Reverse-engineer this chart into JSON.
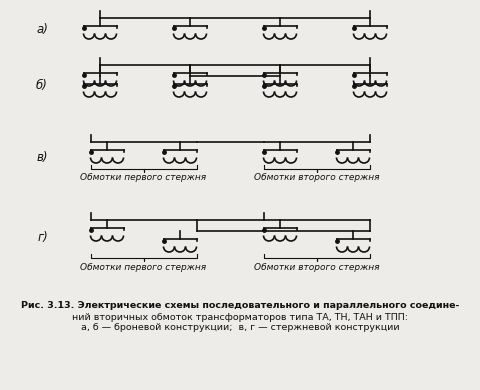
{
  "background_color": "#eeece8",
  "line_color": "#111111",
  "line_width": 1.2,
  "label_a": "а)",
  "label_b": "б)",
  "label_v": "в)",
  "label_g": "г)",
  "text_first_stem": "Обмотки первого стержня",
  "text_second_stem": "Обмотки второго стержня",
  "caption_line1": "Рис. 3.13. Электрические схемы последовательного и параллельного соедине-",
  "caption_line2": "ний вторичных обмоток трансформаторов типа ТА, ТН, ТАН и ТПП:",
  "caption_line3": "а, б — броневой конструкции;  в, г — стержневой конструкции",
  "font_size_label": 8.5,
  "font_size_caption": 6.8,
  "font_size_brace_label": 6.5
}
